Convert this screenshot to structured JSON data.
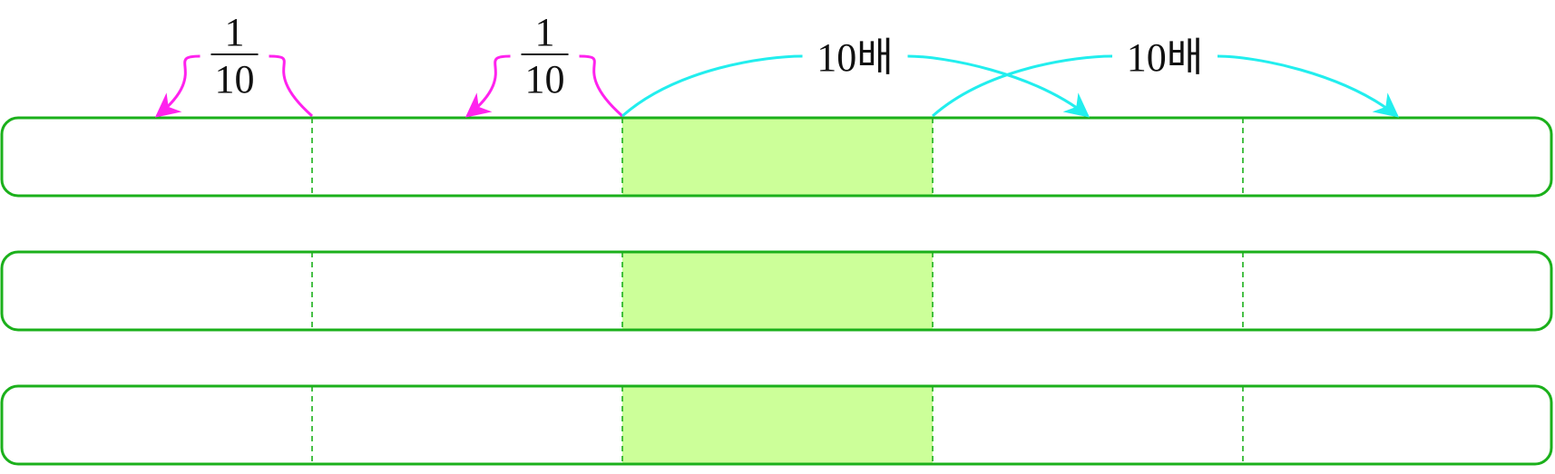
{
  "diagram": {
    "rows": [
      {
        "id": "row-1",
        "cells": 5,
        "highlighted_cell": 3
      },
      {
        "id": "row-2",
        "cells": 5,
        "highlighted_cell": 3
      },
      {
        "id": "row-3",
        "cells": 5,
        "highlighted_cell": 3
      }
    ],
    "arrows": [
      {
        "id": "arrow-divide-1",
        "direction": "left",
        "from_boundary": 1,
        "to_midpoint": 0,
        "label_type": "fraction",
        "numerator": "1",
        "denominator": "10",
        "color_key": "divide"
      },
      {
        "id": "arrow-divide-2",
        "direction": "left",
        "from_boundary": 2,
        "to_midpoint": 1,
        "label_type": "fraction",
        "numerator": "1",
        "denominator": "10",
        "color_key": "divide"
      },
      {
        "id": "arrow-multiply-1",
        "direction": "right",
        "from_boundary": 2,
        "to_midpoint": 3,
        "label_type": "text",
        "label": "10배",
        "color_key": "multiply"
      },
      {
        "id": "arrow-multiply-2",
        "direction": "right",
        "from_boundary": 3,
        "to_midpoint": 4,
        "label_type": "text",
        "label": "10배",
        "color_key": "multiply"
      }
    ]
  },
  "colors": {
    "border": "#1bb01b",
    "divider": "#1bb01b",
    "highlight_fill": "#ccff99",
    "divide": "#ff22ee",
    "multiply": "#22eeee",
    "text": "#111111"
  }
}
